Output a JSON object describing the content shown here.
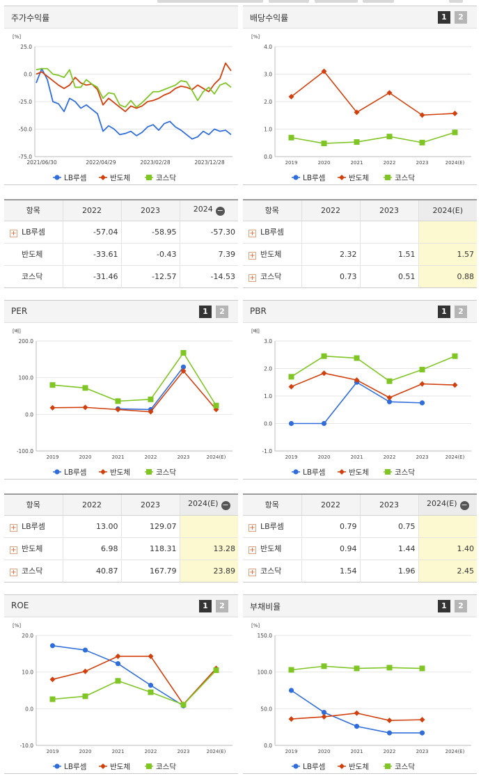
{
  "colors": {
    "lb": "#2f6ddc",
    "semi": "#d1400c",
    "kosdaq": "#7fc524"
  },
  "legend": {
    "lb": "LB루셈",
    "semi": "반도체",
    "kosdaq": "코스닥"
  },
  "panels": [
    {
      "key": "stock",
      "title": "주가수익률",
      "buttons": false,
      "chart_data": {
        "type": "line",
        "unit": "[%]",
        "ylim": [
          -75,
          25
        ],
        "yticks": [
          "25.0",
          "0.0",
          "-25.0",
          "-50.0",
          "-75.0"
        ],
        "xlabels": [
          "2021/06/30",
          "2022/04/29",
          "2023/02/28",
          "2023/12/28"
        ],
        "series": [
          {
            "name": "LB루셈",
            "values": [
              -8,
              5,
              -5,
              -25,
              -27,
              -34,
              -22,
              -25,
              -31,
              -28,
              -32,
              -36,
              -52,
              -47,
              -50,
              -55,
              -54,
              -52,
              -56,
              -53,
              -48,
              -46,
              -51,
              -45,
              -43,
              -48,
              -51,
              -55,
              -59,
              -57,
              -52,
              -55,
              -50,
              -52,
              -51,
              -55
            ]
          },
          {
            "name": "반도체",
            "values": [
              0,
              2,
              -2,
              -6,
              -10,
              -13,
              -10,
              -3,
              -8,
              -10,
              -9,
              -14,
              -28,
              -22,
              -26,
              -30,
              -34,
              -29,
              -31,
              -29,
              -25,
              -24,
              -22,
              -19,
              -17,
              -13,
              -11,
              -12,
              -14,
              -10,
              -13,
              -16,
              -9,
              -4,
              10,
              3
            ]
          },
          {
            "name": "코스닥",
            "values": [
              4,
              5,
              5,
              0,
              -1,
              -3,
              4,
              -12,
              -12,
              -5,
              -9,
              -12,
              -22,
              -17,
              -18,
              -28,
              -30,
              -24,
              -30,
              -26,
              -21,
              -16,
              -16,
              -14,
              -12,
              -10,
              -6,
              -7,
              -15,
              -24,
              -16,
              -12,
              -18,
              -10,
              -8,
              -12
            ]
          }
        ]
      }
    },
    {
      "key": "dividend",
      "title": "배당수익률",
      "buttons": true,
      "chart_data": {
        "type": "line",
        "unit": "[%]",
        "ylim": [
          0,
          4
        ],
        "yticks": [
          "4.0",
          "3.0",
          "2.0",
          "1.0",
          "0.0"
        ],
        "categories": [
          "2019",
          "2020",
          "2021",
          "2022",
          "2023",
          "2024(E)"
        ],
        "series": [
          {
            "name": "LB루셈",
            "values": [
              null,
              null,
              null,
              null,
              null,
              null
            ]
          },
          {
            "name": "반도체",
            "values": [
              2.18,
              3.1,
              1.61,
              2.32,
              1.51,
              1.57
            ]
          },
          {
            "name": "코스닥",
            "values": [
              0.69,
              0.48,
              0.53,
              0.73,
              0.51,
              0.88
            ]
          }
        ]
      }
    },
    {
      "key": "per",
      "title": "PER",
      "buttons": true,
      "chart_data": {
        "type": "line",
        "unit": "[배]",
        "ylim": [
          -100,
          200
        ],
        "yticks": [
          "200.0",
          "100.0",
          "0.0",
          "-100.0"
        ],
        "categories": [
          "2019",
          "2020",
          "2021",
          "2022",
          "2023",
          "2024(E)"
        ],
        "series": [
          {
            "name": "LB루셈",
            "values": [
              null,
              null,
              15,
              13,
              129.07,
              null
            ]
          },
          {
            "name": "반도체",
            "values": [
              18,
              19,
              13,
              6.98,
              118.31,
              13.28
            ]
          },
          {
            "name": "코스닥",
            "values": [
              80,
              72,
              36,
              40.87,
              167.79,
              23.89
            ]
          }
        ]
      }
    },
    {
      "key": "pbr",
      "title": "PBR",
      "buttons": true,
      "chart_data": {
        "type": "line",
        "unit": "[배]",
        "ylim": [
          -1,
          3
        ],
        "yticks": [
          "3.0",
          "2.0",
          "1.0",
          "0.0",
          "-1.0"
        ],
        "categories": [
          "2019",
          "2020",
          "2021",
          "2022",
          "2023",
          "2024(E)"
        ],
        "series": [
          {
            "name": "LB루셈",
            "values": [
              0,
              0,
              1.5,
              0.79,
              0.75,
              null
            ]
          },
          {
            "name": "반도체",
            "values": [
              1.34,
              1.83,
              1.58,
              0.94,
              1.44,
              1.4
            ]
          },
          {
            "name": "코스닥",
            "values": [
              1.7,
              2.45,
              2.38,
              1.54,
              1.96,
              2.45
            ]
          }
        ]
      }
    },
    {
      "key": "roe",
      "title": "ROE",
      "buttons": true,
      "chart_data": {
        "type": "line",
        "unit": "[%]",
        "ylim": [
          -10,
          20
        ],
        "yticks": [
          "20.0",
          "10.0",
          "0.0",
          "-10.0"
        ],
        "categories": [
          "2019",
          "2020",
          "2021",
          "2022",
          "2023",
          "2024(E)"
        ],
        "series": [
          {
            "name": "LB루셈",
            "values": [
              17.2,
              16,
              12.3,
              6.4,
              0.8,
              null
            ]
          },
          {
            "name": "반도체",
            "values": [
              8,
              10.2,
              14.3,
              14.3,
              1.2,
              11
            ]
          },
          {
            "name": "코스닥",
            "values": [
              2.6,
              3.4,
              7.6,
              4.5,
              1.1,
              10.5
            ]
          }
        ]
      }
    },
    {
      "key": "debt",
      "title": "부채비율",
      "buttons": true,
      "chart_data": {
        "type": "line",
        "unit": "[%]",
        "ylim": [
          0,
          150
        ],
        "yticks": [
          "150.0",
          "100.0",
          "50.0",
          "0.0"
        ],
        "categories": [
          "2019",
          "2020",
          "2021",
          "2022",
          "2023",
          "2024(E)"
        ],
        "series": [
          {
            "name": "LB루셈",
            "values": [
              75,
              45,
              26,
              17,
              17,
              null
            ]
          },
          {
            "name": "반도체",
            "values": [
              36,
              39,
              44,
              34,
              35,
              null
            ]
          },
          {
            "name": "코스닥",
            "values": [
              103,
              108,
              105,
              106,
              105,
              null
            ]
          }
        ]
      }
    }
  ],
  "tables": [
    {
      "key": "stock",
      "headers": [
        "항목",
        "2022",
        "2023",
        "2024"
      ],
      "collapse": true,
      "hl": false,
      "rows": [
        {
          "name": "LB루셈",
          "plus": true,
          "cells": [
            "-57.04",
            "-58.95",
            "-57.30"
          ]
        },
        {
          "name": "반도체",
          "plus": false,
          "cells": [
            "-33.61",
            "-0.43",
            "7.39"
          ]
        },
        {
          "name": "코스닥",
          "plus": false,
          "cells": [
            "-31.46",
            "-12.57",
            "-14.53"
          ]
        }
      ]
    },
    {
      "key": "dividend",
      "headers": [
        "항목",
        "2022",
        "2023",
        "2024(E)"
      ],
      "collapse": false,
      "hl": true,
      "rows": [
        {
          "name": "LB루셈",
          "plus": true,
          "cells": [
            "",
            "",
            ""
          ]
        },
        {
          "name": "반도체",
          "plus": true,
          "cells": [
            "2.32",
            "1.51",
            "1.57"
          ]
        },
        {
          "name": "코스닥",
          "plus": true,
          "cells": [
            "0.73",
            "0.51",
            "0.88"
          ]
        }
      ]
    },
    {
      "key": "per",
      "headers": [
        "항목",
        "2022",
        "2023",
        "2024(E)"
      ],
      "collapse": true,
      "hl": true,
      "rows": [
        {
          "name": "LB루셈",
          "plus": true,
          "cells": [
            "13.00",
            "129.07",
            ""
          ]
        },
        {
          "name": "반도체",
          "plus": true,
          "cells": [
            "6.98",
            "118.31",
            "13.28"
          ]
        },
        {
          "name": "코스닥",
          "plus": true,
          "cells": [
            "40.87",
            "167.79",
            "23.89"
          ]
        }
      ]
    },
    {
      "key": "pbr",
      "headers": [
        "항목",
        "2022",
        "2023",
        "2024(E)"
      ],
      "collapse": true,
      "hl": true,
      "rows": [
        {
          "name": "LB루셈",
          "plus": true,
          "cells": [
            "0.79",
            "0.75",
            ""
          ]
        },
        {
          "name": "반도체",
          "plus": true,
          "cells": [
            "0.94",
            "1.44",
            "1.40"
          ]
        },
        {
          "name": "코스닥",
          "plus": true,
          "cells": [
            "1.54",
            "1.96",
            "2.45"
          ]
        }
      ]
    }
  ],
  "buttons": {
    "one": "1",
    "two": "2"
  },
  "minus": "−",
  "plus": "+"
}
